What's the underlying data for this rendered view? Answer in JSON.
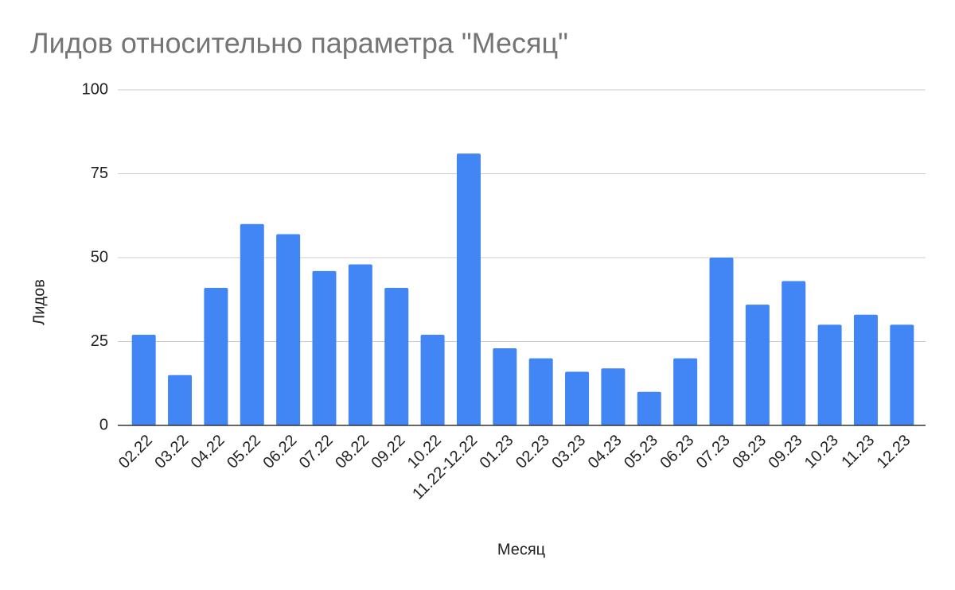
{
  "chart_data": {
    "type": "bar",
    "title": "Лидов относительно параметра \"Месяц\"",
    "x_label": "Месяц",
    "y_label": "Лидов",
    "categories": [
      "02.22",
      "03.22",
      "04.22",
      "05.22",
      "06.22",
      "07.22",
      "08.22",
      "09.22",
      "10.22",
      "11.22-12.22",
      "01.23",
      "02.23",
      "03.23",
      "04.23",
      "05.23",
      "06.23",
      "07.23",
      "08.23",
      "09.23",
      "10.23",
      "11.23",
      "12.23"
    ],
    "values": [
      27,
      15,
      41,
      60,
      57,
      46,
      48,
      41,
      27,
      81,
      23,
      20,
      16,
      17,
      10,
      20,
      50,
      36,
      43,
      30,
      33,
      30
    ],
    "color": "#4285f4",
    "ylim": [
      0,
      100
    ],
    "yticks": [
      0,
      25,
      50,
      75,
      100
    ],
    "grid": true
  }
}
